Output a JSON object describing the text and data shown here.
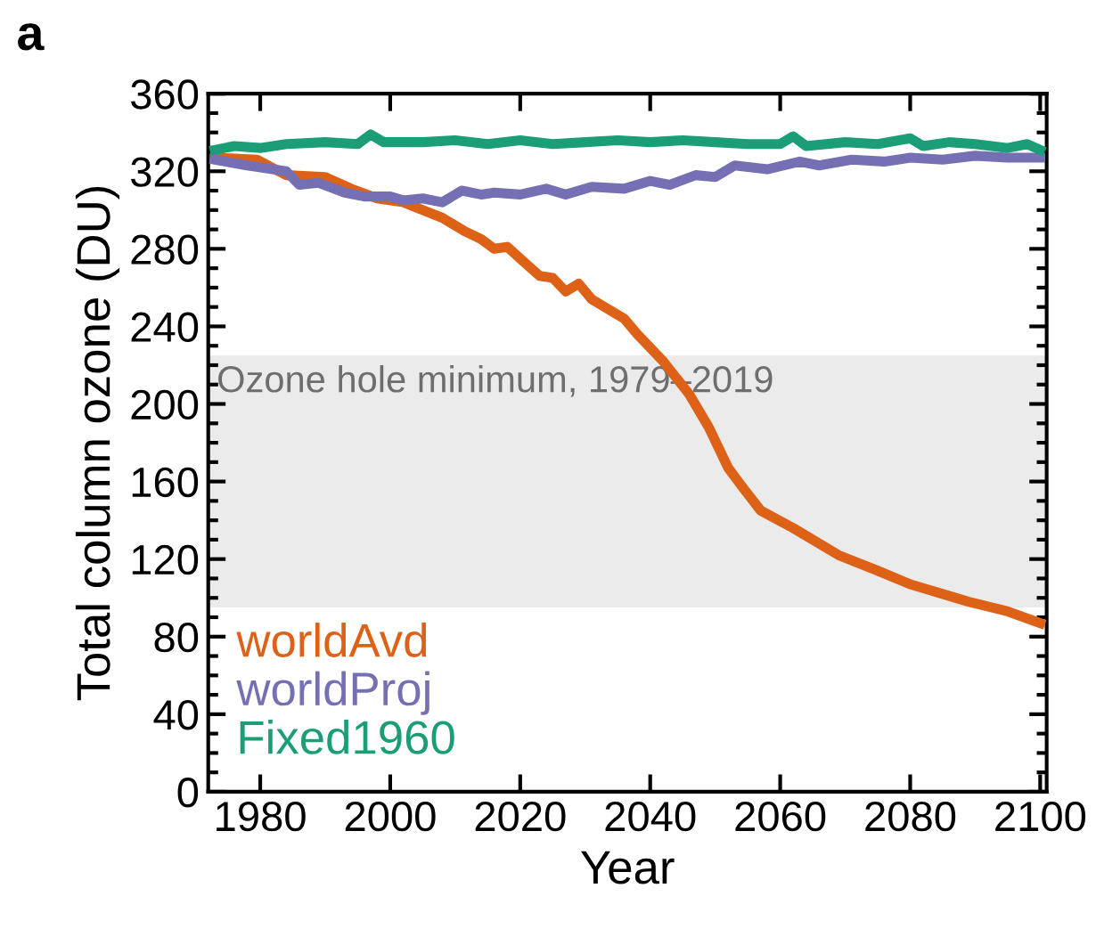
{
  "chart_data": {
    "type": "line",
    "title": "a",
    "xlabel": "Year",
    "ylabel": "Total column ozone (DU)",
    "xlim": [
      1972,
      2101
    ],
    "xticks": [
      1980,
      2000,
      2020,
      2040,
      2060,
      2080,
      2100
    ],
    "ylim": [
      0,
      360
    ],
    "yticks": [
      0,
      40,
      80,
      120,
      160,
      200,
      240,
      280,
      320,
      360
    ],
    "grid": false,
    "legend": "bottom left",
    "bands": [
      {
        "axis": "y",
        "from": 95,
        "to": 225,
        "label": "Ozone hole minimum, 1979–2019",
        "color": "#ebebeb"
      }
    ],
    "series": [
      {
        "name": "worldAvd",
        "color": "#dd6218",
        "x": [
          1973,
          1979.5,
          1984,
          1990,
          1994,
          1998,
          2002,
          2005,
          2008,
          2011.5,
          2014,
          2016,
          2018,
          2021,
          2023,
          2025,
          2027,
          2029,
          2031,
          2033,
          2036,
          2038,
          2042,
          2046,
          2049,
          2052,
          2054,
          2057,
          2062,
          2069,
          2075,
          2080,
          2085,
          2089,
          2095,
          2100
        ],
        "values": [
          327,
          326,
          318,
          317,
          311,
          306,
          304,
          300,
          296,
          289,
          285,
          280,
          281,
          272,
          266,
          265,
          258,
          262,
          254,
          250,
          244,
          236,
          222,
          205,
          188,
          167,
          158,
          145,
          136,
          122,
          114,
          107,
          102,
          98,
          93,
          87
        ]
      },
      {
        "name": "worldProj",
        "color": "#7570b3",
        "x": [
          1973,
          1978,
          1984,
          1986,
          1989,
          1993,
          1996,
          2000,
          2002,
          2005,
          2008,
          2011,
          2014,
          2016,
          2020,
          2024,
          2027,
          2031,
          2036,
          2040,
          2043,
          2047,
          2050,
          2053,
          2058,
          2063,
          2066,
          2071,
          2076,
          2080,
          2085,
          2090,
          2095,
          2100
        ],
        "values": [
          326,
          323,
          320,
          313,
          314,
          309,
          307,
          307,
          305,
          306,
          304,
          310,
          308,
          309,
          308,
          311,
          308,
          312,
          311,
          315,
          313,
          318,
          317,
          323,
          321,
          325,
          323,
          326,
          325,
          327,
          326,
          328,
          327,
          327
        ]
      },
      {
        "name": "Fixed1960",
        "color": "#1b9e77",
        "x": [
          1973,
          1976,
          1980,
          1984,
          1990,
          1995,
          1997,
          1999,
          2005,
          2010,
          2015,
          2020,
          2025,
          2030,
          2035,
          2040,
          2045,
          2050,
          2055,
          2060,
          2062,
          2064,
          2070,
          2075,
          2080,
          2082,
          2086,
          2090,
          2095,
          2098,
          2100
        ],
        "values": [
          331,
          333,
          332,
          334,
          335,
          334,
          339,
          335,
          335,
          336,
          334,
          336,
          334,
          335,
          336,
          335,
          336,
          335,
          334,
          334,
          338,
          333,
          335,
          334,
          337,
          333,
          335,
          334,
          332,
          334,
          331
        ]
      }
    ]
  }
}
